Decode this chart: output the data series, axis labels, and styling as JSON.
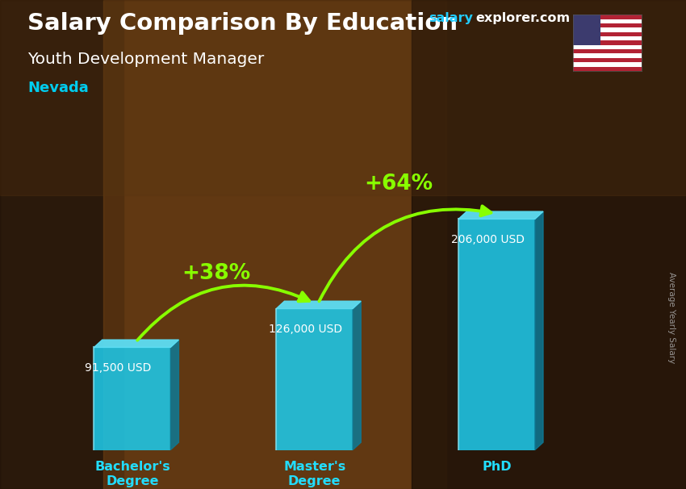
{
  "title_line1": "Salary Comparison By Education",
  "title_line2": "Youth Development Manager",
  "title_line3": "Nevada",
  "watermark_salary": "salary",
  "watermark_rest": "explorer.com",
  "ylabel_rotated": "Average Yearly Salary",
  "categories": [
    "Bachelor's\nDegree",
    "Master's\nDegree",
    "PhD"
  ],
  "values": [
    91500,
    126000,
    206000
  ],
  "value_labels": [
    "91,500 USD",
    "126,000 USD",
    "206,000 USD"
  ],
  "pct_labels": [
    "+38%",
    "+64%"
  ],
  "bar_color_face": "#1EC8E8",
  "bar_color_left": "#17A8C8",
  "bar_color_right": "#0E7A96",
  "bar_color_top": "#5DDFF5",
  "bg_color": "#7A4A20",
  "title_color": "#ffffff",
  "subtitle_color": "#ffffff",
  "nevada_color": "#00CCEE",
  "value_label_color": "#ffffff",
  "pct_color": "#88FF00",
  "arrow_color": "#88FF00",
  "xlabel_color": "#22DDFF",
  "watermark_salary_color": "#22CCFF",
  "watermark_explorer_color": "#ffffff",
  "right_label_color": "#aaaaaa",
  "ylim_max": 240000,
  "bar_positions": [
    0.5,
    1.5,
    2.5
  ],
  "bar_width": 0.42,
  "x_lim": [
    0,
    3.2
  ]
}
